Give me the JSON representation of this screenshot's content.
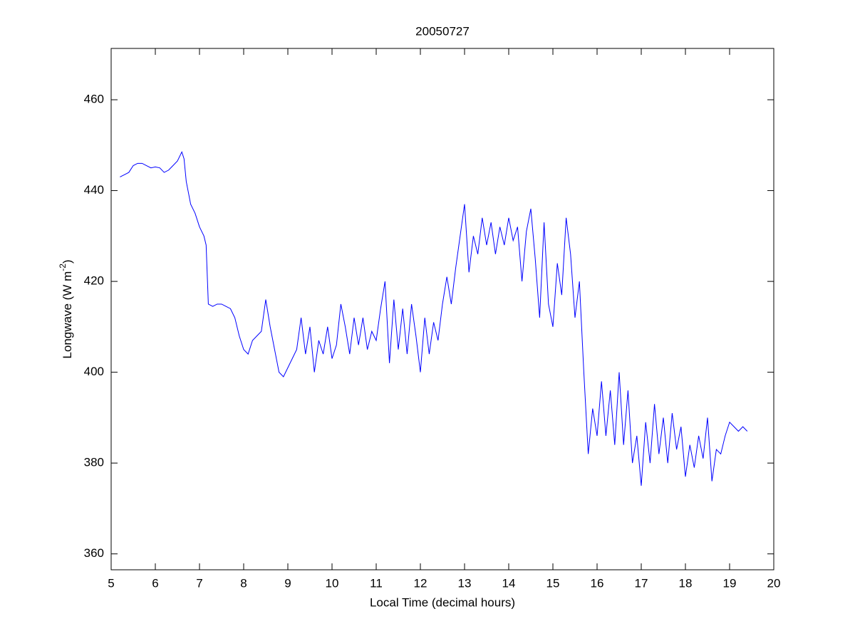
{
  "chart_data": {
    "type": "line",
    "title": "20050727",
    "xlabel": "Local Time (decimal hours)",
    "ylabel_parts": [
      "Longwave (W m",
      "-2",
      ")"
    ],
    "xlim": [
      5,
      20
    ],
    "ylim": [
      356.5,
      471.3
    ],
    "xticks": [
      5,
      6,
      7,
      8,
      9,
      10,
      11,
      12,
      13,
      14,
      15,
      16,
      17,
      18,
      19,
      20
    ],
    "yticks": [
      360,
      380,
      400,
      420,
      440,
      460
    ],
    "series": [
      {
        "color": "#0000ff",
        "x": [
          5.2,
          5.3,
          5.4,
          5.5,
          5.6,
          5.7,
          5.8,
          5.9,
          6.0,
          6.1,
          6.2,
          6.3,
          6.4,
          6.5,
          6.6,
          6.65,
          6.7,
          6.8,
          6.9,
          7.0,
          7.1,
          7.15,
          7.2,
          7.3,
          7.4,
          7.5,
          7.6,
          7.7,
          7.8,
          7.9,
          8.0,
          8.1,
          8.2,
          8.3,
          8.4,
          8.5,
          8.6,
          8.7,
          8.8,
          8.9,
          9.0,
          9.1,
          9.2,
          9.3,
          9.4,
          9.5,
          9.6,
          9.7,
          9.8,
          9.9,
          10.0,
          10.1,
          10.2,
          10.3,
          10.4,
          10.5,
          10.6,
          10.7,
          10.8,
          10.9,
          11.0,
          11.1,
          11.2,
          11.3,
          11.4,
          11.5,
          11.6,
          11.7,
          11.8,
          11.9,
          12.0,
          12.1,
          12.2,
          12.3,
          12.4,
          12.5,
          12.6,
          12.7,
          12.8,
          12.9,
          13.0,
          13.1,
          13.2,
          13.3,
          13.4,
          13.5,
          13.6,
          13.7,
          13.8,
          13.9,
          14.0,
          14.1,
          14.2,
          14.3,
          14.4,
          14.5,
          14.6,
          14.7,
          14.8,
          14.9,
          15.0,
          15.1,
          15.2,
          15.3,
          15.4,
          15.5,
          15.6,
          15.7,
          15.8,
          15.9,
          16.0,
          16.1,
          16.2,
          16.3,
          16.4,
          16.5,
          16.6,
          16.7,
          16.8,
          16.9,
          17.0,
          17.1,
          17.2,
          17.3,
          17.4,
          17.5,
          17.6,
          17.7,
          17.8,
          17.9,
          18.0,
          18.1,
          18.2,
          18.3,
          18.4,
          18.5,
          18.6,
          18.7,
          18.8,
          18.9,
          19.0,
          19.1,
          19.2,
          19.3,
          19.4
        ],
        "values": [
          443,
          443.5,
          444,
          445.5,
          446,
          446,
          445.5,
          445,
          445.2,
          445,
          444,
          444.5,
          445.5,
          446.5,
          448.5,
          447,
          442,
          437,
          435,
          432,
          430,
          428,
          415,
          414.5,
          415,
          415,
          414.5,
          414,
          412,
          408,
          405,
          404,
          407,
          408,
          409,
          416,
          410,
          405,
          400,
          399,
          401,
          403,
          405,
          412,
          404,
          410,
          400,
          407,
          404,
          410,
          403,
          406,
          415,
          410,
          404,
          412,
          406,
          412,
          405,
          409,
          407,
          414,
          420,
          402,
          416,
          405,
          414,
          404,
          415,
          408,
          400,
          412,
          404,
          411,
          407,
          415,
          421,
          415,
          423,
          430,
          437,
          422,
          430,
          426,
          434,
          428,
          433,
          426,
          432,
          428,
          434,
          429,
          432,
          420,
          431,
          436,
          425,
          412,
          433,
          415,
          410,
          424,
          417,
          434,
          426,
          412,
          420,
          400,
          382,
          392,
          386,
          398,
          386,
          396,
          384,
          400,
          384,
          396,
          380,
          386,
          375,
          389,
          380,
          393,
          382,
          390,
          380,
          391,
          383,
          388,
          377,
          384,
          379,
          386,
          381,
          390,
          376,
          383,
          382,
          386,
          389,
          388,
          387,
          388,
          387
        ]
      }
    ]
  }
}
